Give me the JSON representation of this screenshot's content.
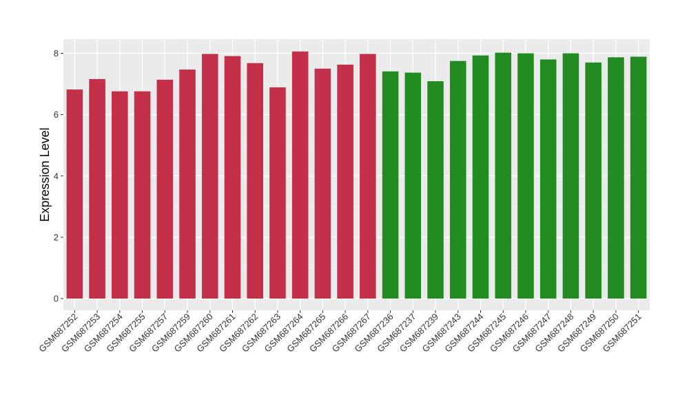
{
  "chart_data": {
    "type": "bar",
    "ylabel": "Expression Level",
    "xlabel": "",
    "ylim": [
      0,
      8.4
    ],
    "yticks": [
      0,
      2,
      4,
      6,
      8
    ],
    "grid": true,
    "panel_background": "#EBEBEB",
    "categories": [
      "GSM687252",
      "GSM687253",
      "GSM687254",
      "GSM687255",
      "GSM687257",
      "GSM687259",
      "GSM687260",
      "GSM687261",
      "GSM687262",
      "GSM687263",
      "GSM687264",
      "GSM687265",
      "GSM687266",
      "GSM687267",
      "GSM687236",
      "GSM687237",
      "GSM687239",
      "GSM687243",
      "GSM687244",
      "GSM687245",
      "GSM687246",
      "GSM687247",
      "GSM687248",
      "GSM687249",
      "GSM687250",
      "GSM687251"
    ],
    "values": [
      6.82,
      7.16,
      6.76,
      6.76,
      7.14,
      7.47,
      7.98,
      7.91,
      7.68,
      6.89,
      8.06,
      7.5,
      7.63,
      7.98,
      7.41,
      7.37,
      7.09,
      7.75,
      7.93,
      8.02,
      8.0,
      7.8,
      8.0,
      7.7,
      7.87,
      7.89
    ],
    "bar_colors": [
      "#C3304A",
      "#C3304A",
      "#C3304A",
      "#C3304A",
      "#C3304A",
      "#C3304A",
      "#C3304A",
      "#C3304A",
      "#C3304A",
      "#C3304A",
      "#C3304A",
      "#C3304A",
      "#C3304A",
      "#C3304A",
      "#228B22",
      "#228B22",
      "#228B22",
      "#228B22",
      "#228B22",
      "#228B22",
      "#228B22",
      "#228B22",
      "#228B22",
      "#228B22",
      "#228B22",
      "#228B22"
    ]
  }
}
